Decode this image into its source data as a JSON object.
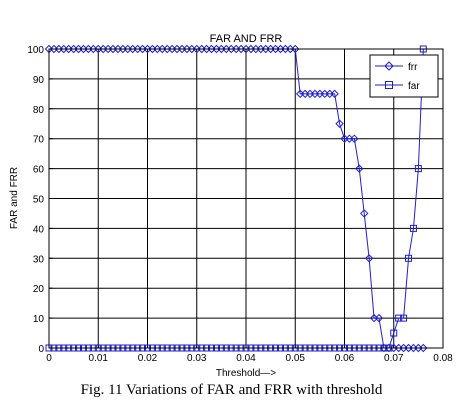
{
  "chart_data": {
    "type": "line",
    "title": "FAR AND FRR",
    "xlabel": "Threshold—>",
    "ylabel": "FAR and FRR",
    "xlim": [
      0,
      0.08
    ],
    "ylim": [
      0,
      100
    ],
    "xticks": [
      0,
      0.01,
      0.02,
      0.03,
      0.04,
      0.05,
      0.06,
      0.07,
      0.08
    ],
    "xtick_labels": [
      "0",
      "0.01",
      "0.02",
      "0.03",
      "0.04",
      "0.05",
      "0.06",
      "0.07",
      "0.08"
    ],
    "yticks": [
      0,
      10,
      20,
      30,
      40,
      50,
      60,
      70,
      80,
      90,
      100
    ],
    "ytick_labels": [
      "0",
      "10",
      "20",
      "30",
      "40",
      "50",
      "60",
      "70",
      "80",
      "90",
      "100"
    ],
    "grid": true,
    "legend_position": "top-right",
    "series": [
      {
        "name": "frr",
        "marker": "diamond",
        "color": "#1f1fd0",
        "x": [
          0,
          0.001,
          0.002,
          0.003,
          0.004,
          0.005,
          0.006,
          0.007,
          0.008,
          0.009,
          0.01,
          0.011,
          0.012,
          0.013,
          0.014,
          0.015,
          0.016,
          0.017,
          0.018,
          0.019,
          0.02,
          0.021,
          0.022,
          0.023,
          0.024,
          0.025,
          0.026,
          0.027,
          0.028,
          0.029,
          0.03,
          0.031,
          0.032,
          0.033,
          0.034,
          0.035,
          0.036,
          0.037,
          0.038,
          0.039,
          0.04,
          0.041,
          0.042,
          0.043,
          0.044,
          0.045,
          0.046,
          0.047,
          0.048,
          0.049,
          0.05,
          0.051,
          0.052,
          0.053,
          0.054,
          0.055,
          0.056,
          0.057,
          0.058,
          0.059,
          0.06,
          0.061,
          0.062,
          0.063,
          0.064,
          0.065,
          0.066,
          0.067,
          0.068,
          0.069,
          0.07,
          0.071,
          0.072,
          0.073,
          0.074,
          0.075,
          0.076
        ],
        "y": [
          100,
          100,
          100,
          100,
          100,
          100,
          100,
          100,
          100,
          100,
          100,
          100,
          100,
          100,
          100,
          100,
          100,
          100,
          100,
          100,
          100,
          100,
          100,
          100,
          100,
          100,
          100,
          100,
          100,
          100,
          100,
          100,
          100,
          100,
          100,
          100,
          100,
          100,
          100,
          100,
          100,
          100,
          100,
          100,
          100,
          100,
          100,
          100,
          100,
          100,
          100,
          85,
          85,
          85,
          85,
          85,
          85,
          85,
          85,
          75,
          70,
          70,
          70,
          60,
          45,
          30,
          10,
          10,
          0,
          0,
          0,
          0,
          0,
          0,
          0,
          0,
          0
        ]
      },
      {
        "name": "far",
        "marker": "square",
        "color": "#1f1fd0",
        "x": [
          0,
          0.001,
          0.002,
          0.003,
          0.004,
          0.005,
          0.006,
          0.007,
          0.008,
          0.009,
          0.01,
          0.011,
          0.012,
          0.013,
          0.014,
          0.015,
          0.016,
          0.017,
          0.018,
          0.019,
          0.02,
          0.021,
          0.022,
          0.023,
          0.024,
          0.025,
          0.026,
          0.027,
          0.028,
          0.029,
          0.03,
          0.031,
          0.032,
          0.033,
          0.034,
          0.035,
          0.036,
          0.037,
          0.038,
          0.039,
          0.04,
          0.041,
          0.042,
          0.043,
          0.044,
          0.045,
          0.046,
          0.047,
          0.048,
          0.049,
          0.05,
          0.051,
          0.052,
          0.053,
          0.054,
          0.055,
          0.056,
          0.057,
          0.058,
          0.059,
          0.06,
          0.061,
          0.062,
          0.063,
          0.064,
          0.065,
          0.066,
          0.067,
          0.068,
          0.069,
          0.07,
          0.071,
          0.072,
          0.073,
          0.074,
          0.075,
          0.076
        ],
        "y": [
          0,
          0,
          0,
          0,
          0,
          0,
          0,
          0,
          0,
          0,
          0,
          0,
          0,
          0,
          0,
          0,
          0,
          0,
          0,
          0,
          0,
          0,
          0,
          0,
          0,
          0,
          0,
          0,
          0,
          0,
          0,
          0,
          0,
          0,
          0,
          0,
          0,
          0,
          0,
          0,
          0,
          0,
          0,
          0,
          0,
          0,
          0,
          0,
          0,
          0,
          0,
          0,
          0,
          0,
          0,
          0,
          0,
          0,
          0,
          0,
          0,
          0,
          0,
          0,
          0,
          0,
          0,
          0,
          0,
          0,
          5,
          10,
          10,
          30,
          40,
          60,
          100
        ]
      }
    ]
  },
  "caption": "Fig. 11 Variations of FAR and FRR with threshold"
}
